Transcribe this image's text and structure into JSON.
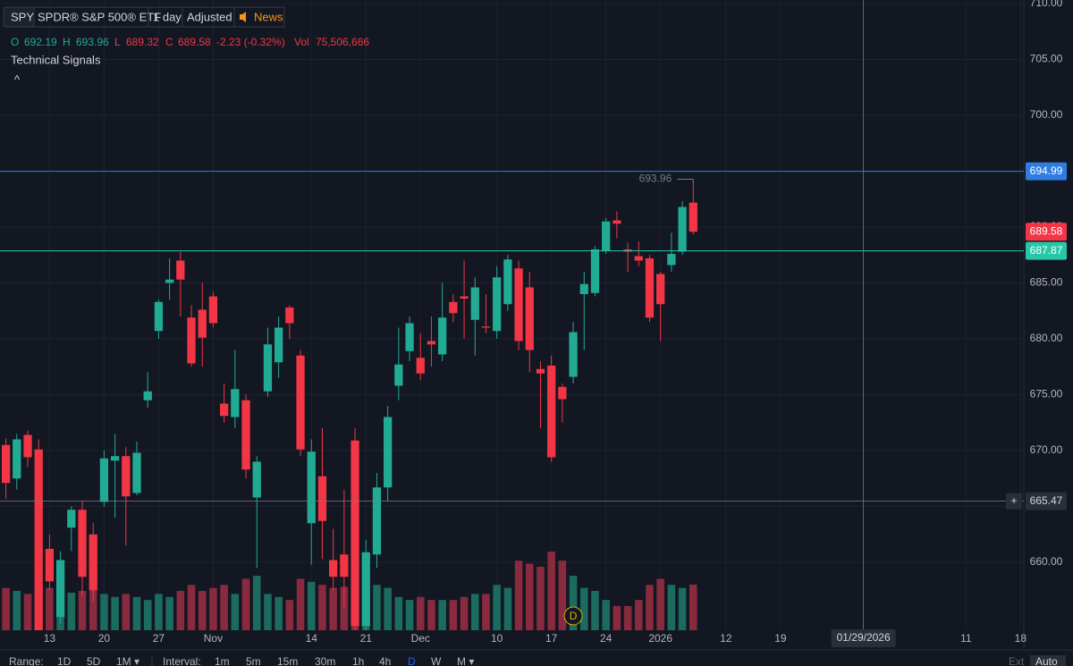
{
  "header": {
    "symbol": "SPY",
    "name": "SPDR® S&P 500® ETF",
    "interval": "1 day",
    "adjustment": "Adjusted",
    "news": "News",
    "legend": {
      "o_label": "O",
      "open": "692.19",
      "h_label": "H",
      "high": "693.96",
      "l_label": "L",
      "low": "689.32",
      "c_label": "C",
      "close": "689.58",
      "change": "-2.23 (-0.32%)",
      "vol_label": "Vol",
      "volume": "75,506,666"
    },
    "signals": "Technical Signals",
    "collapse": "^"
  },
  "toolbar": {
    "range_label": "Range:",
    "ranges": [
      "1D",
      "5D",
      "1M ▾"
    ],
    "interval_label": "Interval:",
    "intervals": [
      "1m",
      "5m",
      "15m",
      "30m",
      "1h",
      "4h",
      "D",
      "W",
      "M ▾"
    ],
    "ext": "Ext",
    "auto": "Auto"
  },
  "chart_data": {
    "type": "candlestick",
    "up_color": "#22ab94",
    "down_color": "#f23645",
    "up_volume_color": "#1c6b5f",
    "down_volume_color": "#8a2a3e",
    "grid": true,
    "xlim": [
      -0.541,
      93.3
    ],
    "xticks": [
      {
        "value": 4,
        "label": "13"
      },
      {
        "value": 9,
        "label": "20"
      },
      {
        "value": 14,
        "label": "27"
      },
      {
        "value": 19,
        "label": "Nov"
      },
      {
        "value": 28,
        "label": "14"
      },
      {
        "value": 33,
        "label": "21"
      },
      {
        "value": 38,
        "label": "Dec"
      },
      {
        "value": 45,
        "label": "10"
      },
      {
        "value": 50,
        "label": "17"
      },
      {
        "value": 55,
        "label": "24"
      },
      {
        "value": 60,
        "label": "2026"
      },
      {
        "value": 66,
        "label": "12"
      },
      {
        "value": 71,
        "label": "19"
      },
      {
        "value": 88,
        "label": "11"
      },
      {
        "value": 93,
        "label": "18"
      }
    ],
    "ylim": [
      653.92,
      710.32
    ],
    "yticks": [
      {
        "value": 660,
        "label": "660.00"
      },
      {
        "value": 665,
        "label": "665.00"
      },
      {
        "value": 670,
        "label": "670.00"
      },
      {
        "value": 675,
        "label": "675.00"
      },
      {
        "value": 680,
        "label": "680.00"
      },
      {
        "value": 685,
        "label": "685.00"
      },
      {
        "value": 690,
        "label": "690.00"
      },
      {
        "value": 695,
        "label": "695.00"
      },
      {
        "value": 700,
        "label": "700.00"
      },
      {
        "value": 705,
        "label": "705.00"
      },
      {
        "value": 710,
        "label": "710.00"
      }
    ],
    "open": [
      670.5,
      667.5,
      671.4,
      670.1,
      661.2,
      655.1,
      663.1,
      664.7,
      662.5,
      665.4,
      669.1,
      669.5,
      666.2,
      674.5,
      680.7,
      685.0,
      687.0,
      681.9,
      682.6,
      683.8,
      674.2,
      673.0,
      674.5,
      665.8,
      675.3,
      677.9,
      682.8,
      678.5,
      663.5,
      667.7,
      660.2,
      660.7,
      670.9,
      654.3,
      660.7,
      666.7,
      675.8,
      678.9,
      678.3,
      679.8,
      678.6,
      683.3,
      683.8,
      681.7,
      681.1,
      680.7,
      683.1,
      686.3,
      684.6,
      677.3,
      677.6,
      675.7,
      676.6,
      684.0,
      684.1,
      687.9,
      690.6,
      688.0,
      687.4,
      687.2,
      685.8,
      686.6,
      687.8,
      692.19
    ],
    "high": [
      671.1,
      671.5,
      671.8,
      671.0,
      662.5,
      661.0,
      665.0,
      665.5,
      663.5,
      670.0,
      671.5,
      670.3,
      670.8,
      677.0,
      683.5,
      687.2,
      687.8,
      683.0,
      685.0,
      684.2,
      676.0,
      679.0,
      675.0,
      669.5,
      681.0,
      682.0,
      683.0,
      679.0,
      671.0,
      672.0,
      663.0,
      666.5,
      672.0,
      662.0,
      668.0,
      674.0,
      681.0,
      682.0,
      680.5,
      682.0,
      685.0,
      684.0,
      687.0,
      685.5,
      684.0,
      686.5,
      687.5,
      687.0,
      686.0,
      678.0,
      678.5,
      676.0,
      681.5,
      686.0,
      688.3,
      690.8,
      691.4,
      688.6,
      688.7,
      687.5,
      686.0,
      689.5,
      692.3,
      693.96
    ],
    "low": [
      665.7,
      666.5,
      668.5,
      652.5,
      657.5,
      654.5,
      661.0,
      657.0,
      656.5,
      665.0,
      664.0,
      661.5,
      666.0,
      673.8,
      680.0,
      683.5,
      682.0,
      677.5,
      677.5,
      681.0,
      672.5,
      672.0,
      667.5,
      659.5,
      674.8,
      676.5,
      680.0,
      669.5,
      659.8,
      660.3,
      657.5,
      656.0,
      653.5,
      653.5,
      659.5,
      665.5,
      674.5,
      678.0,
      676.3,
      677.5,
      678.0,
      681.5,
      680.0,
      678.5,
      680.5,
      680.0,
      682.5,
      679.0,
      677.0,
      672.0,
      669.0,
      672.5,
      676.0,
      679.0,
      683.8,
      687.6,
      689.0,
      686.0,
      686.5,
      681.5,
      679.8,
      686.0,
      687.5,
      689.32
    ],
    "close": [
      667.1,
      671.0,
      669.4,
      653.0,
      658.3,
      660.2,
      664.7,
      658.7,
      657.5,
      669.3,
      669.5,
      665.9,
      669.8,
      675.3,
      683.3,
      685.3,
      685.3,
      677.8,
      680.1,
      681.4,
      673.1,
      675.5,
      668.3,
      669.0,
      679.5,
      681.0,
      681.4,
      670.1,
      669.9,
      663.7,
      658.7,
      658.7,
      654.3,
      660.9,
      666.7,
      673.0,
      677.7,
      681.4,
      676.9,
      679.5,
      681.9,
      682.3,
      683.6,
      684.6,
      681.0,
      685.5,
      687.1,
      679.8,
      679.0,
      676.9,
      669.4,
      674.6,
      680.6,
      684.9,
      688.0,
      690.5,
      690.3,
      687.8,
      687.0,
      681.9,
      683.1,
      687.6,
      691.8,
      689.58
    ],
    "volume": [
      70000000,
      65000000,
      60000000,
      95000000,
      70000000,
      60000000,
      62000000,
      65000000,
      70000000,
      60000000,
      55000000,
      60000000,
      55000000,
      50000000,
      60000000,
      55000000,
      65000000,
      75000000,
      65000000,
      70000000,
      75000000,
      60000000,
      85000000,
      90000000,
      60000000,
      55000000,
      50000000,
      85000000,
      80000000,
      75000000,
      70000000,
      72000000,
      110000000,
      85000000,
      75000000,
      70000000,
      55000000,
      50000000,
      55000000,
      50000000,
      50000000,
      50000000,
      55000000,
      60000000,
      60000000,
      75000000,
      70000000,
      115000000,
      110000000,
      105000000,
      130000000,
      115000000,
      90000000,
      70000000,
      65000000,
      50000000,
      40000000,
      40000000,
      50000000,
      75000000,
      85000000,
      75000000,
      70000000,
      75506666
    ],
    "price_lines": [
      {
        "value": 694.99,
        "color": "#2f7de1",
        "line": true
      },
      {
        "value": 689.58,
        "color": "#f23645",
        "line": false
      },
      {
        "value": 687.87,
        "color": "#26c6a6",
        "line": true
      }
    ],
    "high_marker": 693.96,
    "dividend_marker": {
      "index": 52,
      "label": "D"
    },
    "crosshair": {
      "x": {
        "value": 78.6,
        "label": "01/29/2026"
      },
      "y": 665.47,
      "button": "+"
    }
  }
}
